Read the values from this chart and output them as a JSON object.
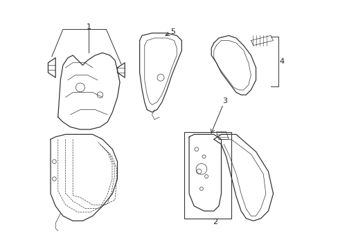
{
  "background_color": "#ffffff",
  "line_color": "#333333",
  "text_color": "#222222",
  "fig_width": 4.89,
  "fig_height": 3.6,
  "dpi": 100
}
